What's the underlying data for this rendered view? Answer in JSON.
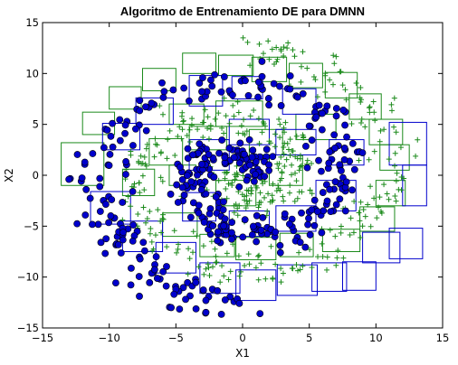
{
  "chart_data": {
    "type": "scatter",
    "title": "Algoritmo de Entrenamiento DE para DMNN",
    "xlabel": "X1",
    "ylabel": "X2",
    "xlim": [
      -15,
      15
    ],
    "ylim": [
      -15,
      15
    ],
    "xticks": [
      -15,
      -10,
      -5,
      0,
      5,
      10,
      15
    ],
    "yticks": [
      -15,
      -10,
      -5,
      0,
      5,
      10,
      15
    ],
    "xtick_labels": [
      "−15",
      "−10",
      "−5",
      "0",
      "5",
      "10",
      "15"
    ],
    "ytick_labels": [
      "−15",
      "−10",
      "−5",
      "0",
      "5",
      "10",
      "15"
    ],
    "grid": false,
    "series": [
      {
        "class": "spiral-1",
        "marker": "circle",
        "color": "#0000cc",
        "edgecolor": "#000000",
        "spiral": {
          "turns": 1.75,
          "r_start": 0.3,
          "r_end": 12.5,
          "angle_start": 0.0,
          "points": 420,
          "noise": 1.1
        }
      },
      {
        "class": "spiral-2",
        "marker": "plus",
        "color": "#1b8a1b",
        "spiral": {
          "turns": 1.75,
          "r_start": 0.3,
          "r_end": 12.5,
          "angle_start": 3.14159,
          "points": 420,
          "noise": 1.1
        }
      }
    ],
    "boxes": [
      {
        "color": "#1b8a1b",
        "rects": [
          [
            -7.5,
            8.3,
            2.5,
            2.2
          ],
          [
            -10,
            6.5,
            2.4,
            2.2
          ],
          [
            -4.5,
            10,
            2.5,
            2.0
          ],
          [
            -1.8,
            9.8,
            2.6,
            2.0
          ],
          [
            0.7,
            9.2,
            2.6,
            2.4
          ],
          [
            3.5,
            8.6,
            2.5,
            2.4
          ],
          [
            6.2,
            7.6,
            2.4,
            2.5
          ],
          [
            -12,
            4,
            2.4,
            2.2
          ],
          [
            -13.6,
            -1,
            3.2,
            4.2
          ],
          [
            -2,
            4.8,
            3.5,
            2.5
          ],
          [
            4.0,
            3.5,
            3.0,
            2.5
          ],
          [
            8.0,
            5.5,
            2.4,
            2.5
          ],
          [
            -5.5,
            5.0,
            2.6,
            2.0
          ],
          [
            -7.0,
            1.0,
            2.5,
            2.6
          ],
          [
            -5.5,
            -1.0,
            2.0,
            2.0
          ],
          [
            2.0,
            -1.0,
            2.5,
            3.0
          ],
          [
            9.5,
            3.0,
            2.5,
            2.5
          ],
          [
            10.3,
            0.5,
            2.2,
            2.5
          ],
          [
            10.0,
            -3.0,
            2.2,
            2.5
          ],
          [
            8.8,
            -5.5,
            2.6,
            2.4
          ],
          [
            6.0,
            -7.5,
            2.8,
            2.2
          ],
          [
            -6.0,
            -6.0,
            2.6,
            2.3
          ],
          [
            -3.2,
            -8.0,
            2.6,
            2.2
          ],
          [
            -0.5,
            -8.3,
            3.0,
            2.2
          ],
          [
            2.8,
            -8.0,
            2.5,
            2.3
          ],
          [
            -9.0,
            -2.0,
            2.4,
            2.6
          ],
          [
            -2.0,
            -3.0,
            3.0,
            2.5
          ],
          [
            0.5,
            2.0,
            2.5,
            2.5
          ],
          [
            -4.0,
            2.5,
            2.8,
            2.3
          ]
        ]
      },
      {
        "color": "#0000cc",
        "rects": [
          [
            -4.0,
            6.8,
            2.5,
            3.0
          ],
          [
            -0.8,
            7.5,
            2.3,
            2.2
          ],
          [
            3.0,
            6.0,
            2.5,
            2.5
          ],
          [
            -8.0,
            5.0,
            2.8,
            2.6
          ],
          [
            -10.5,
            2.5,
            2.8,
            2.6
          ],
          [
            -11.4,
            -4.8,
            3.0,
            3.2
          ],
          [
            -9.0,
            -7.5,
            3.0,
            3.0
          ],
          [
            -6.5,
            -9.6,
            3.0,
            3.0
          ],
          [
            -3.2,
            -11.6,
            3.0,
            3.0
          ],
          [
            -0.5,
            -12.3,
            3.0,
            3.0
          ],
          [
            2.6,
            -11.8,
            3.0,
            3.0
          ],
          [
            5.2,
            -11.4,
            2.6,
            2.8
          ],
          [
            7.5,
            -11.3,
            2.5,
            2.8
          ],
          [
            9.0,
            -8.6,
            2.8,
            3.0
          ],
          [
            11.0,
            -8.2,
            2.5,
            3.0
          ],
          [
            12.0,
            -3.0,
            1.8,
            4.0
          ],
          [
            11.0,
            1.0,
            2.8,
            4.2
          ],
          [
            6.5,
            1.0,
            2.6,
            2.5
          ],
          [
            5.5,
            -3.5,
            3.0,
            3.0
          ],
          [
            2.5,
            -5.5,
            3.0,
            2.5
          ],
          [
            -1.0,
            -6.0,
            3.0,
            2.5
          ],
          [
            -4.5,
            -4.5,
            2.5,
            2.8
          ],
          [
            -4.0,
            0.5,
            3.0,
            3.0
          ],
          [
            -1.0,
            3.0,
            3.0,
            2.5
          ],
          [
            2.5,
            2.0,
            3.0,
            2.5
          ]
        ]
      }
    ]
  }
}
